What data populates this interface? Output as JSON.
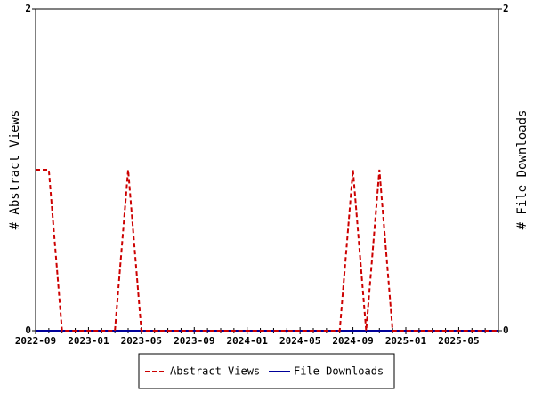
{
  "chart_data": {
    "type": "line",
    "categories": [
      "2022-09",
      null,
      null,
      null,
      "2023-01",
      null,
      null,
      null,
      "2023-05",
      null,
      null,
      null,
      "2023-09",
      null,
      null,
      null,
      "2024-01",
      null,
      null,
      null,
      "2024-05",
      null,
      null,
      null,
      "2024-09",
      null,
      null,
      null,
      "2025-01",
      null,
      null,
      null,
      "2025-05",
      null,
      null,
      null
    ],
    "ylabel": "# Abstract Views",
    "y2label": "# File Downloads",
    "ylim": [
      0,
      2
    ],
    "yticks": [
      0,
      2
    ],
    "y2lim": [
      0,
      2
    ],
    "y2ticks": [
      0,
      2
    ],
    "grid": false,
    "legend": "bottom",
    "series": [
      {
        "name": "Abstract Views",
        "color": "#cc0000",
        "dashed": true,
        "values": [
          1,
          1,
          0,
          0,
          0,
          0,
          0,
          1,
          0,
          0,
          0,
          0,
          0,
          0,
          0,
          0,
          0,
          0,
          0,
          0,
          0,
          0,
          0,
          0,
          1,
          0,
          1,
          0,
          0,
          0,
          0,
          0,
          0,
          0,
          0,
          0
        ]
      },
      {
        "name": "File Downloads",
        "color": "#000099",
        "axis": "y2",
        "dashed": false,
        "values": [
          0,
          0,
          0,
          0,
          0,
          0,
          0,
          0,
          0,
          0,
          0,
          0,
          0,
          0,
          0,
          0,
          0,
          0,
          0,
          0,
          0,
          0,
          0,
          0,
          0,
          0,
          0,
          0,
          0,
          0,
          0,
          0,
          0,
          0,
          0,
          0
        ]
      }
    ]
  }
}
